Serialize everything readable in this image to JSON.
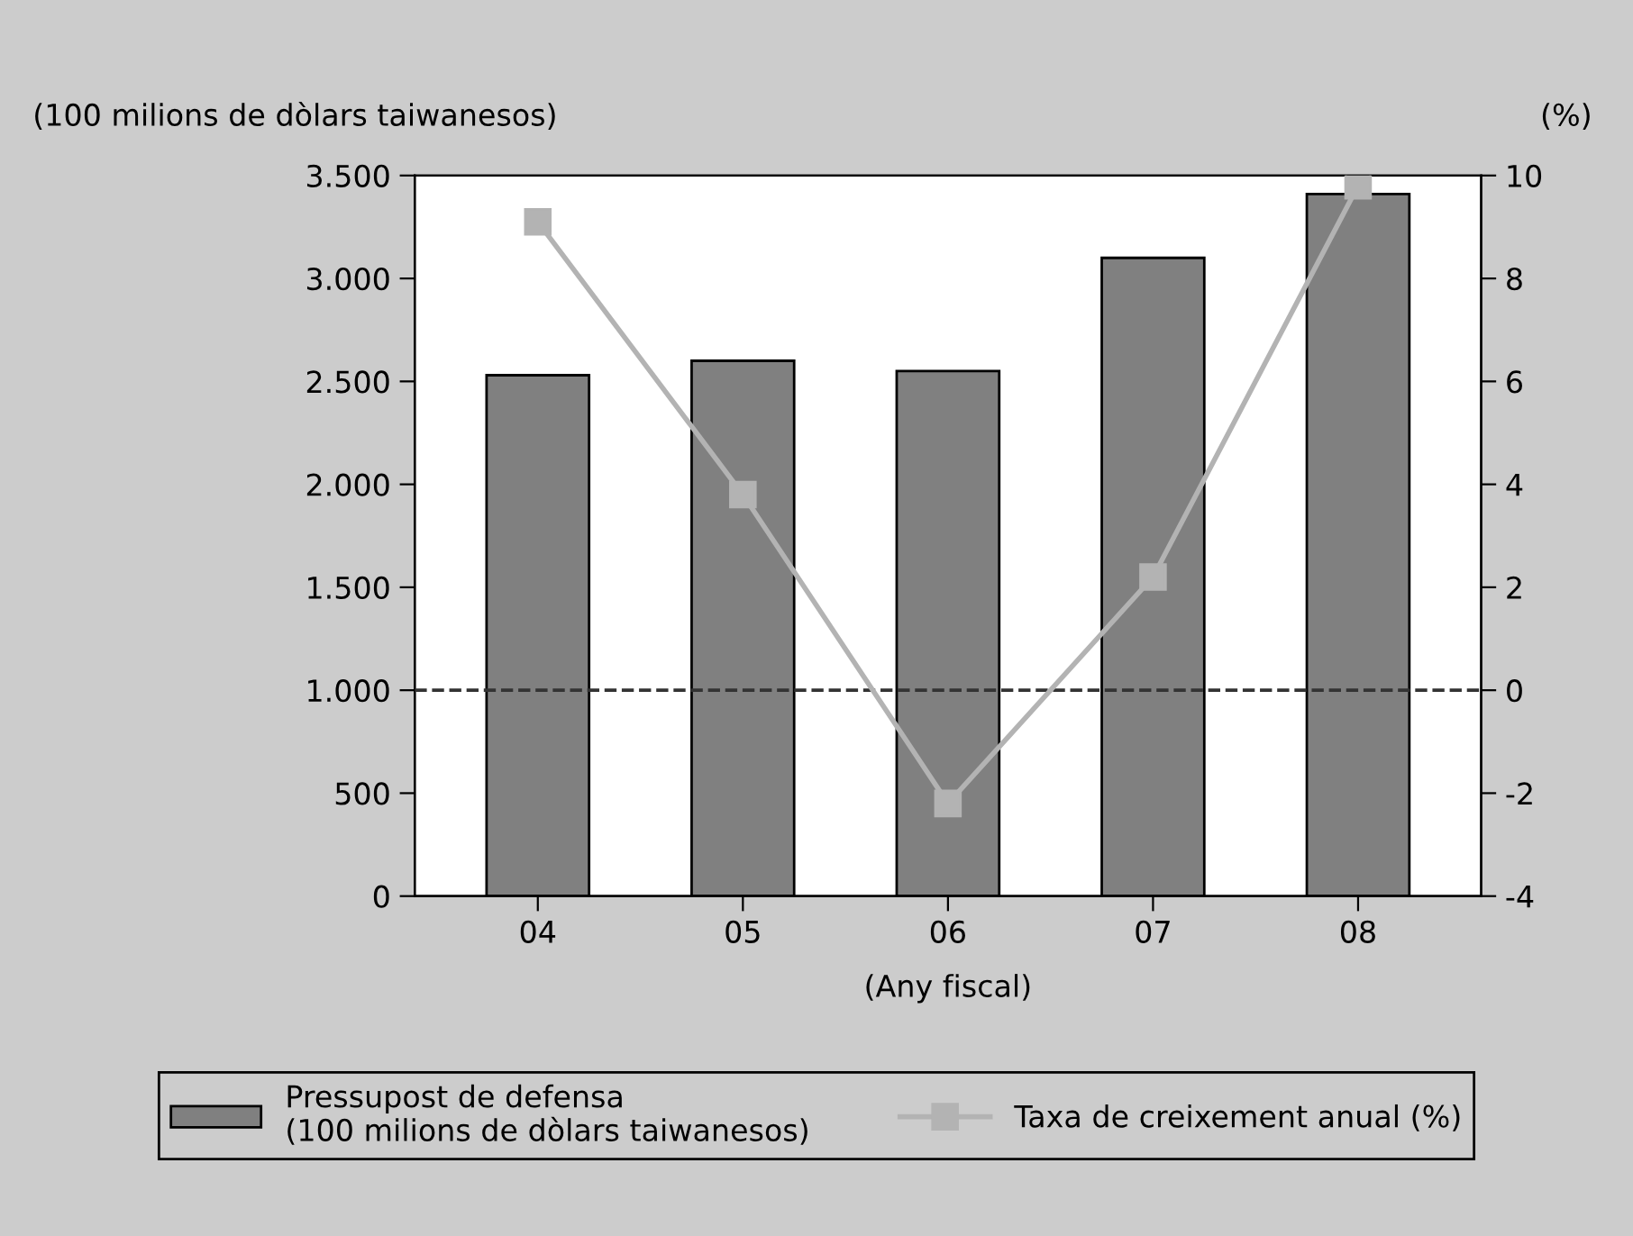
{
  "chart_data": {
    "type": "bar",
    "ylabel": "(100 milions de dòlars taiwanesos)",
    "y2label": "(%)",
    "xlabel": "(Any fiscal)",
    "categories": [
      "04",
      "05",
      "06",
      "07",
      "08"
    ],
    "series": [
      {
        "name": "Pressupost de defensa\n(100 milions de dòlars taiwanesos)",
        "color": "#808080",
        "values": [
          2530,
          2600,
          2550,
          3100,
          3410
        ]
      },
      {
        "name": "Taxa de creixement anual (%)",
        "type": "line",
        "axis": "y2",
        "color": "#b3b3b3",
        "marker": "square",
        "values": [
          9.1,
          3.8,
          -2.2,
          2.2,
          9.8
        ]
      }
    ],
    "ylim": [
      0,
      3500
    ],
    "yticks": [
      {
        "value": 0,
        "label": "0"
      },
      {
        "value": 500,
        "label": "500"
      },
      {
        "value": 1000,
        "label": "1.000"
      },
      {
        "value": 1500,
        "label": "1.500"
      },
      {
        "value": 2000,
        "label": "2.000"
      },
      {
        "value": 2500,
        "label": "2.500"
      },
      {
        "value": 3000,
        "label": "3.000"
      },
      {
        "value": 3500,
        "label": "3.500"
      }
    ],
    "y2lim": [
      -4,
      10
    ],
    "y2ticks": [
      -4,
      -2,
      0,
      2,
      4,
      6,
      8,
      10
    ],
    "ref_lines": [
      {
        "axis": "y2",
        "value": 0,
        "color": "#333333",
        "line_style": "dashed"
      }
    ],
    "grid": false,
    "legend": "bottom"
  }
}
